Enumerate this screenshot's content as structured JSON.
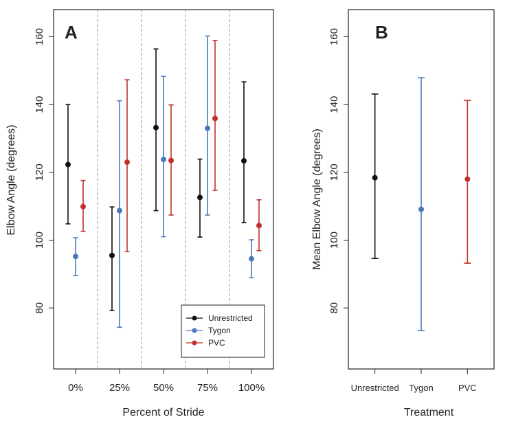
{
  "colors": {
    "Unrestricted": "#111111",
    "Tygon": "#4a78b8",
    "PVC": "#c0302a",
    "divider": "#999999",
    "frame": "#222222"
  },
  "chart_data": [
    {
      "type": "scatter",
      "panel": "A",
      "title": "",
      "xlabel": "Percent of Stride",
      "ylabel": "Elbow Angle (degrees)",
      "ylim": [
        62,
        168
      ],
      "yticks": [
        80,
        100,
        120,
        140,
        160
      ],
      "categories": [
        "0%",
        "25%",
        "50%",
        "75%",
        "100%"
      ],
      "grid": false,
      "legend": {
        "position": "bottom-right",
        "entries": [
          "Unrestricted",
          "Tygon",
          "PVC"
        ]
      },
      "series": [
        {
          "name": "Unrestricted",
          "mean": [
            122.3,
            95.5,
            133.2,
            112.6,
            123.4
          ],
          "lower": [
            104.8,
            79.3,
            108.7,
            100.9,
            105.2
          ],
          "upper": [
            140.0,
            109.8,
            156.4,
            123.9,
            146.7
          ]
        },
        {
          "name": "Tygon",
          "mean": [
            95.2,
            108.7,
            123.8,
            133.0,
            94.5
          ],
          "lower": [
            89.6,
            74.3,
            101.0,
            107.4,
            88.9
          ],
          "upper": [
            100.7,
            141.1,
            148.3,
            160.2,
            100.1
          ]
        },
        {
          "name": "PVC",
          "mean": [
            109.9,
            123.0,
            123.5,
            135.9,
            104.3
          ],
          "lower": [
            102.6,
            96.6,
            107.4,
            114.7,
            96.9
          ],
          "upper": [
            117.6,
            147.3,
            139.9,
            158.9,
            111.9
          ]
        }
      ]
    },
    {
      "type": "scatter",
      "panel": "B",
      "title": "",
      "xlabel": "Treatment",
      "ylabel": "Mean Elbow Angle (degrees)",
      "ylim": [
        62,
        168
      ],
      "yticks": [
        80,
        100,
        120,
        140,
        160
      ],
      "categories": [
        "Unrestricted",
        "Tygon",
        "PVC"
      ],
      "grid": false,
      "points": [
        {
          "name": "Unrestricted",
          "mean": 118.4,
          "lower": 94.6,
          "upper": 143.1
        },
        {
          "name": "Tygon",
          "mean": 109.1,
          "lower": 73.3,
          "upper": 147.9
        },
        {
          "name": "PVC",
          "mean": 118.0,
          "lower": 93.2,
          "upper": 141.2
        }
      ]
    }
  ]
}
